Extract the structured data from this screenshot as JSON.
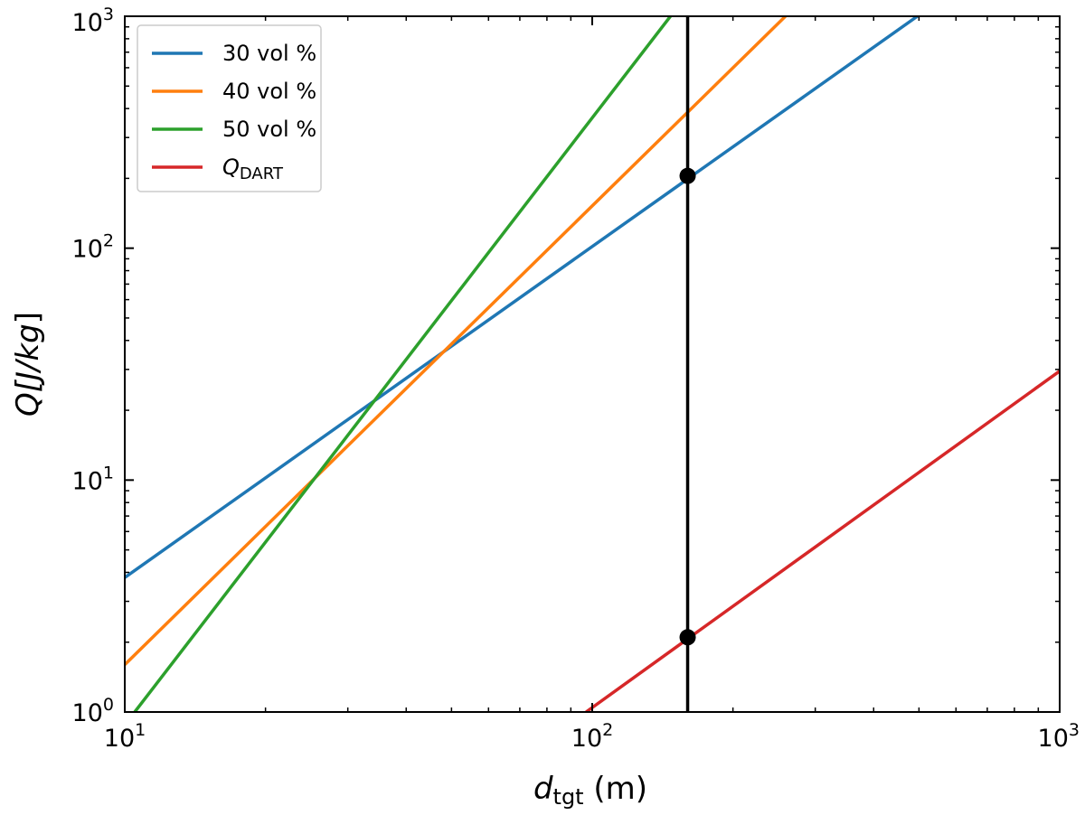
{
  "chart_data": {
    "type": "line",
    "x_scale": "log",
    "y_scale": "log",
    "xlim": [
      10,
      1000
    ],
    "ylim": [
      1,
      1000
    ],
    "grid": false,
    "legend_placement": "top-left",
    "xlabel": {
      "var": "d",
      "sub": "tgt",
      "unit": " (m)"
    },
    "ylabel": {
      "pre": "Q[",
      "italic": "J/kg",
      "post": "]"
    },
    "x_ticks": [
      {
        "value": 10,
        "base": "10",
        "exp": "1"
      },
      {
        "value": 100,
        "base": "10",
        "exp": "2"
      },
      {
        "value": 1000,
        "base": "10",
        "exp": "3"
      }
    ],
    "y_ticks": [
      {
        "value": 1,
        "base": "10",
        "exp": "0"
      },
      {
        "value": 10,
        "base": "10",
        "exp": "1"
      },
      {
        "value": 100,
        "base": "10",
        "exp": "2"
      },
      {
        "value": 1000,
        "base": "10",
        "exp": "3"
      }
    ],
    "series": [
      {
        "name": "30 vol %",
        "color": "#1f77b4",
        "x": [
          10,
          496
        ],
        "y": [
          3.8,
          1000
        ]
      },
      {
        "name": "40 vol %",
        "color": "#ff7f0e",
        "x": [
          10,
          259
        ],
        "y": [
          1.6,
          1000
        ]
      },
      {
        "name": "50 vol %",
        "color": "#2ca02c",
        "x": [
          10.5,
          147
        ],
        "y": [
          1.0,
          1000
        ]
      },
      {
        "name": "Q",
        "name_sub": "DART",
        "color": "#d62728",
        "x": [
          97,
          1000
        ],
        "y": [
          1.0,
          29.5
        ]
      }
    ],
    "vertical_line": {
      "x": 160,
      "color": "#000000"
    },
    "markers": [
      {
        "x": 160,
        "y": 205
      },
      {
        "x": 160,
        "y": 2.1
      }
    ]
  }
}
